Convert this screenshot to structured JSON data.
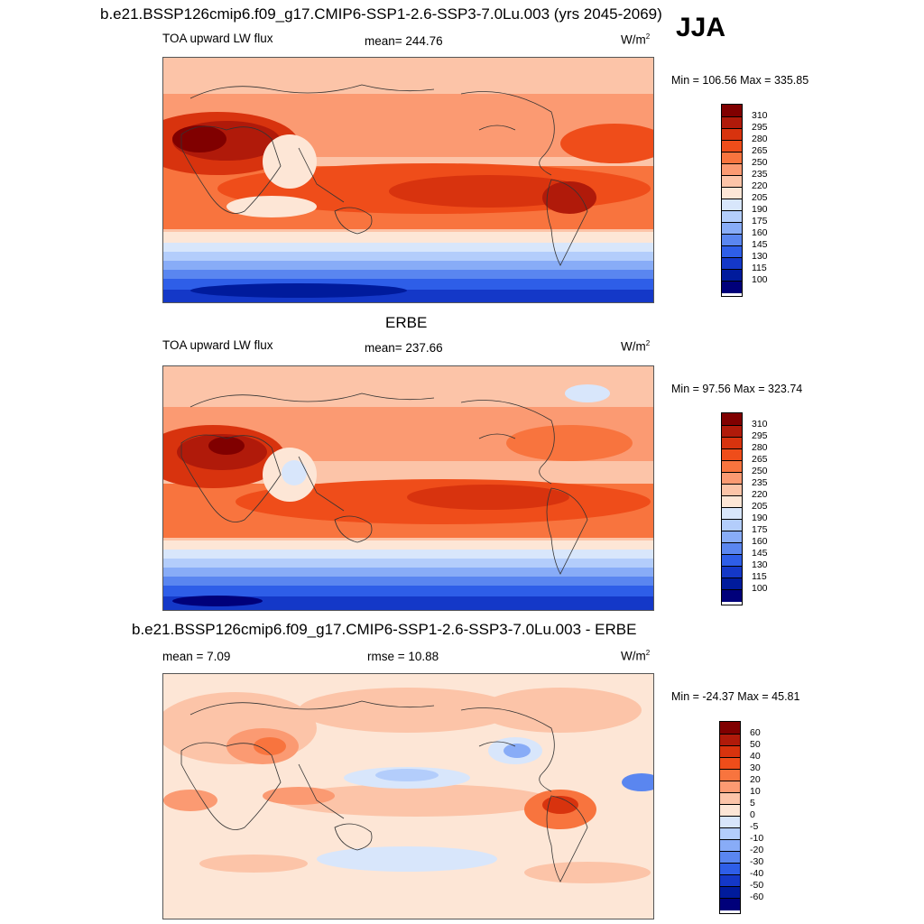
{
  "title": "b.e21.BSSP126cmip6.f09_g17.CMIP6-SSP1-2.6-SSP3-7.0Lu.003 (yrs 2045-2069)",
  "season": "JJA",
  "panels": [
    {
      "heading": "",
      "left_label": "TOA upward LW flux",
      "center_label": "mean= 244.76",
      "units": "W/m",
      "units_sup": "2",
      "minmax": "Min = 106.56 Max = 335.85",
      "colorbar": [
        "310",
        "295",
        "280",
        "265",
        "250",
        "235",
        "220",
        "205",
        "190",
        "175",
        "160",
        "145",
        "130",
        "115",
        "100"
      ]
    },
    {
      "heading": "ERBE",
      "left_label": "TOA upward LW flux",
      "center_label": "mean= 237.66",
      "units": "W/m",
      "units_sup": "2",
      "minmax": "Min =  97.56 Max = 323.74",
      "colorbar": [
        "310",
        "295",
        "280",
        "265",
        "250",
        "235",
        "220",
        "205",
        "190",
        "175",
        "160",
        "145",
        "130",
        "115",
        "100"
      ]
    },
    {
      "heading": "b.e21.BSSP126cmip6.f09_g17.CMIP6-SSP1-2.6-SSP3-7.0Lu.003 - ERBE",
      "left_label": "mean =   7.09",
      "center_label": "rmse =  10.88",
      "units": "W/m",
      "units_sup": "2",
      "minmax": "Min = -24.37 Max =  45.81",
      "colorbar": [
        "60",
        "50",
        "40",
        "30",
        "20",
        "10",
        "5",
        "0",
        "-5",
        "-10",
        "-20",
        "-30",
        "-40",
        "-50",
        "-60"
      ]
    }
  ],
  "colors": {
    "flux_scale": [
      "#800000",
      "#b01a0a",
      "#d8330e",
      "#ef4d1a",
      "#f8743e",
      "#fb9a72",
      "#fcc4a8",
      "#fde6d6",
      "#d8e6fb",
      "#b3cdfb",
      "#88acf7",
      "#5a86f0",
      "#2e5ee8",
      "#1438c8",
      "#001b9c",
      "#00007a"
    ],
    "diff_scale": [
      "#800000",
      "#b01a0a",
      "#d8330e",
      "#ef4d1a",
      "#f8743e",
      "#fb9a72",
      "#fcc4a8",
      "#fde6d6",
      "#d8e6fb",
      "#b3cdfb",
      "#88acf7",
      "#5a86f0",
      "#2e5ee8",
      "#1438c8",
      "#001b9c",
      "#00007a"
    ]
  }
}
